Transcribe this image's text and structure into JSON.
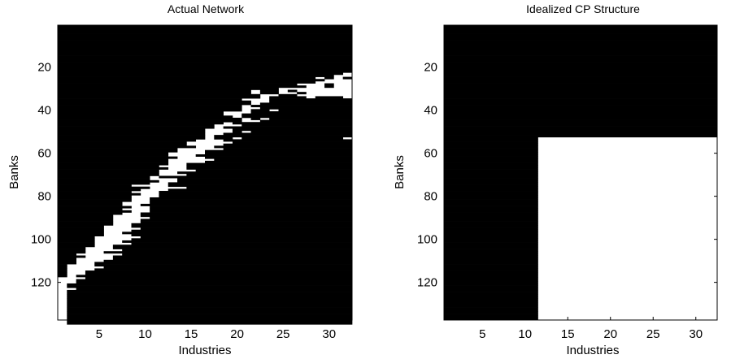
{
  "chart_data": [
    {
      "type": "heatmap",
      "title": "Actual Network",
      "xlabel": "Industries",
      "ylabel": "Banks",
      "xlim": [
        0.5,
        32.5
      ],
      "ylim": [
        0.5,
        137.5
      ],
      "y_reversed": true,
      "xticks": [
        5,
        10,
        15,
        20,
        25,
        30
      ],
      "yticks": [
        20,
        40,
        60,
        80,
        100,
        120
      ],
      "rows": 137,
      "cols": 32,
      "colors": {
        "link": "#000000",
        "no_link": "#ffffff"
      },
      "values_note": "binary matrix; 1 = black cell",
      "matrix_rle": "32;32;32;32;32;32;32;32;32;32;32;32;32;32;32;32;32;32;32;32;32;32;31,1;30,2;28,1,1,1,1;29,3;28,4;26,3,1,2;27,2,1,2;24,8;21,1,2,1,1,6;21,1,2,2,1,5;22,2,2,6;22,1,4,1,3,1;20,3,9;21,2,9;21,1,10;20,1,11;20,2,10;20,1,2,1,8;18,3,11;18,2,12;19,1,12;20,1,1,1,9;20,2,10;18,1,13;17,3,12;17,1,14;16,3,13;16,3,1,1,11;16,2,14;16,1,15;16,1,2,1,11,1;15,3,14;14,5,13;14,4,14;15,2,15;13,5,14;13,3,16;12,4,16;12,3,17;13,3,16;12,5,15;12,4,16;12,2,18;11,3,18;12,2,18;11,4,17;11,2,19;11,3,18;10,1,21;10,3,19;11,2,19;10,2,20;8,4,20;10,4,18;9,3,20;8,3,21;9,2,21;8,3,21;8,2,22;8,2,22;7,3,22;7,2,23;8,2,22;7,3,22;8,2,22;7,2,23;6,3,23;6,4,22;6,3,23;6,3,23;6,2,24;5,3,24;5,4,23;5,3,24;5,2,25;5,3,24;4,5,23;4,4,24;4,3,25;4,4,24;4,2,26;3,3,26;3,4,25;3,2,27;2,5,25;3,3,26;2,4,26;2,3,27;2,2,28;1,3,28;1,4,27;1,3,28;1,2,29;1,2,29;1,1,30;0,3,29;0,2,30;0,2,30;0,1,31;0,1,31;0,2,30;0,1,31;0,1,31;0,1,31;0,1,31;0,1,31;0,1,31;0,1,31;0,1,31;0,1,31;0,1,31;0,1,31;0,1,31;0,1,31;0,1,31;0,1,31;0,1,31"
    },
    {
      "type": "heatmap",
      "title": "Idealized CP Structure",
      "xlabel": "Industries",
      "ylabel": "Banks",
      "xlim": [
        0.5,
        32.5
      ],
      "ylim": [
        0.5,
        137.5
      ],
      "y_reversed": true,
      "xticks": [
        5,
        10,
        15,
        20,
        25,
        30
      ],
      "yticks": [
        20,
        40,
        60,
        80,
        100,
        120
      ],
      "rows": 137,
      "cols": 32,
      "core_banks": 52,
      "core_industries": 11,
      "colors": {
        "link": "#000000",
        "no_link": "#ffffff"
      },
      "values_note": "cell = 1 if bank <= core_banks or industry <= core_industries"
    }
  ]
}
